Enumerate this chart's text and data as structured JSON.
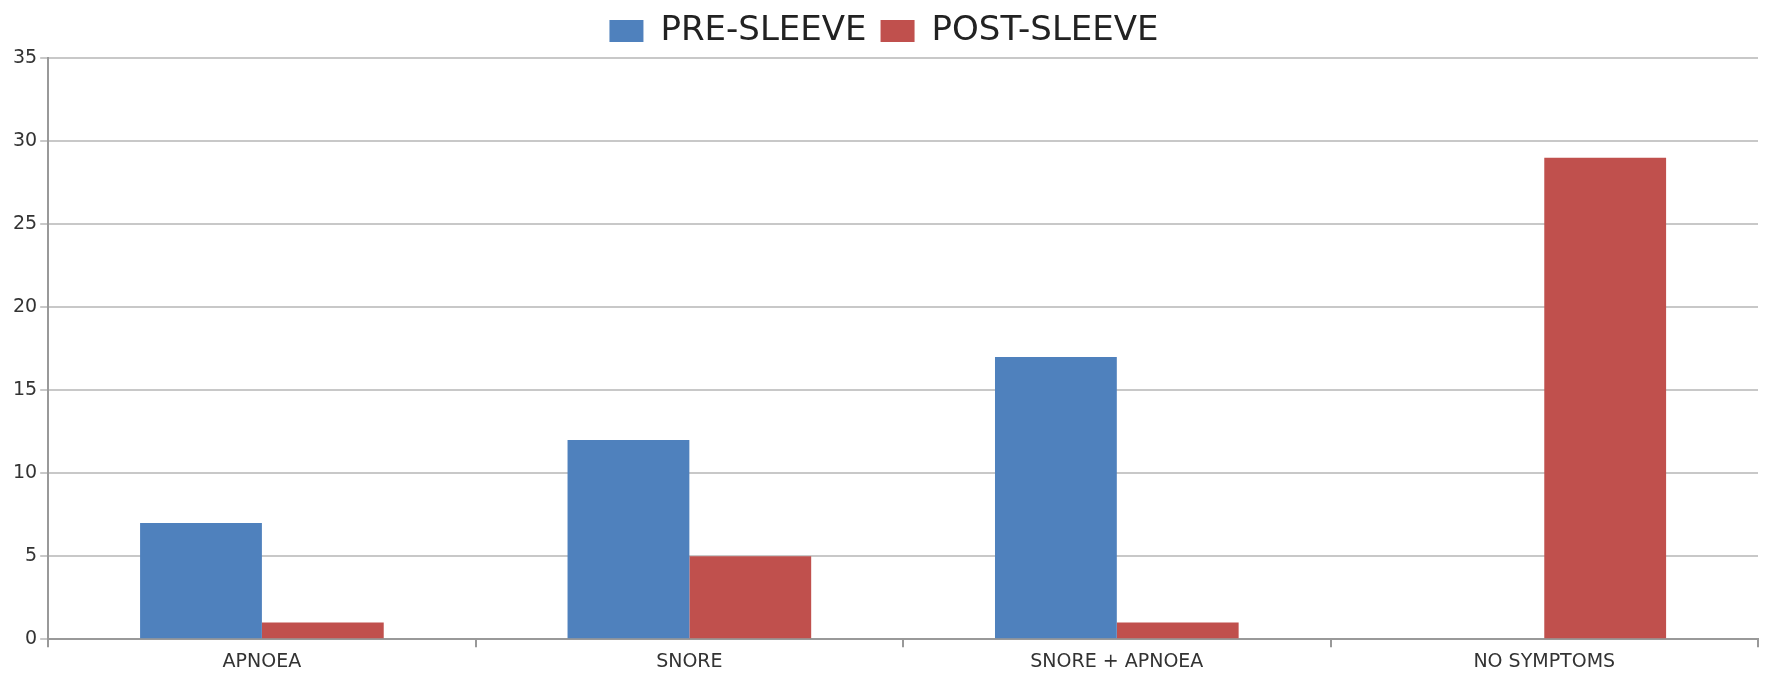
{
  "chart_data": {
    "type": "bar",
    "categories": [
      "APNOEA",
      "SNORE",
      "SNORE + APNOEA",
      "NO SYMPTOMS"
    ],
    "series": [
      {
        "name": "PRE-SLEEVE",
        "color": "#4f81bd",
        "values": [
          7,
          12,
          17,
          0
        ]
      },
      {
        "name": "POST-SLEEVE",
        "color": "#c0504d",
        "values": [
          1,
          5,
          1,
          29
        ]
      }
    ],
    "ylim": [
      0,
      35
    ],
    "yticks": [
      0,
      5,
      10,
      15,
      20,
      25,
      30,
      35
    ],
    "grid": "y",
    "legend": "top"
  }
}
